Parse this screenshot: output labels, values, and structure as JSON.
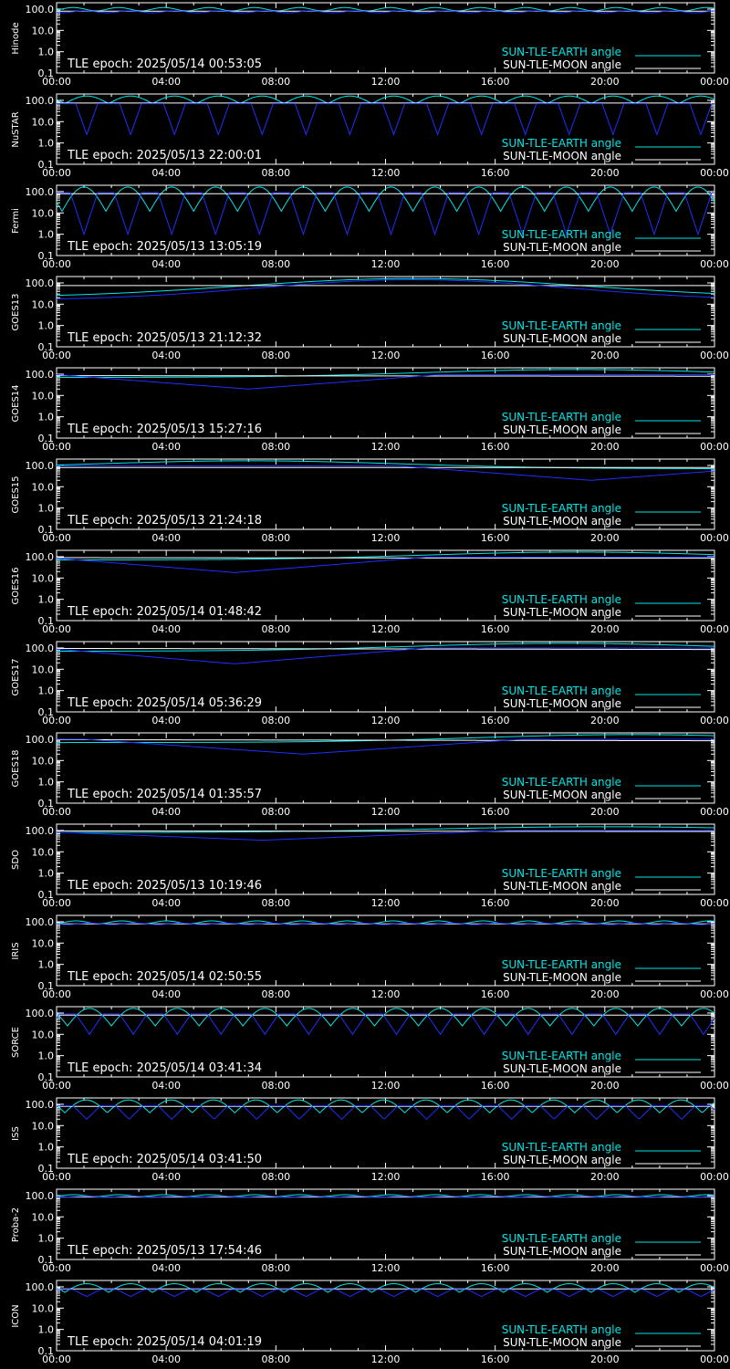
{
  "colors": {
    "background": "#000000",
    "frame": "#ffffff",
    "sun_tle_earth": "#00e5e5",
    "sun_tle_moon": "#ffffff",
    "blue_curve": "#1e2fff"
  },
  "legend": {
    "earth_label": "SUN-TLE-EARTH angle",
    "moon_label": "SUN-TLE-MOON angle"
  },
  "x_axis": {
    "ticks": [
      "00:00",
      "04:00",
      "08:00",
      "12:00",
      "16:00",
      "20:00",
      "00:00"
    ],
    "range_hours": [
      0,
      24
    ]
  },
  "y_axis": {
    "scale": "log",
    "ticks": [
      "100.0",
      "10.0",
      "1.0",
      "0.1"
    ],
    "range": [
      0.1,
      180
    ]
  },
  "chart_data": [
    {
      "type": "line",
      "satellite": "Hinode",
      "tle_epoch": "TLE epoch: 2025/05/14 00:53:05",
      "series": [
        {
          "name": "SUN-TLE-EARTH angle",
          "pattern": "periodic",
          "mean": 100,
          "amp": 18,
          "period_h": 1.65,
          "phase_h": 0.2
        },
        {
          "name": "SUN-TLE-MOON angle",
          "pattern": "linear",
          "start": 80,
          "end": 80
        },
        {
          "pattern": "periodic",
          "mean": 75,
          "amp": 8,
          "period_h": 1.65,
          "phase_h": 0.6
        }
      ]
    },
    {
      "type": "line",
      "satellite": "NuSTAR",
      "tle_epoch": "TLE epoch: 2025/05/13 22:00:01",
      "series": [
        {
          "name": "SUN-TLE-EARTH angle",
          "pattern": "arch",
          "peak": 160,
          "trough": 70,
          "period_h": 1.6,
          "phase_h": 0.3
        },
        {
          "name": "SUN-TLE-MOON angle",
          "pattern": "linear",
          "start": 75,
          "end": 75
        },
        {
          "pattern": "vdip",
          "base": 70,
          "min": 2.5,
          "period_h": 1.6,
          "phase_h": 1.1,
          "width_h": 0.4
        }
      ]
    },
    {
      "type": "line",
      "satellite": "Fermi",
      "tle_epoch": "TLE epoch: 2025/05/13 13:05:19",
      "series": [
        {
          "name": "SUN-TLE-EARTH angle",
          "pattern": "arch",
          "peak": 165,
          "trough": 12,
          "period_h": 1.6,
          "phase_h": 0.2
        },
        {
          "name": "SUN-TLE-MOON angle",
          "pattern": "linear",
          "start": 80,
          "end": 80
        },
        {
          "pattern": "vdip",
          "base": 90,
          "min": 1.0,
          "period_h": 1.6,
          "phase_h": 1.0,
          "width_h": 0.5
        }
      ]
    },
    {
      "type": "line",
      "satellite": "GOES13",
      "tle_epoch": "TLE epoch: 2025/05/13 21:12:32",
      "series": [
        {
          "name": "SUN-TLE-EARTH angle",
          "pattern": "bell",
          "center_h": 13,
          "peak": 160,
          "base": 20,
          "width_h": 9
        },
        {
          "name": "SUN-TLE-MOON angle",
          "pattern": "linear",
          "start": 75,
          "end": 75
        },
        {
          "pattern": "bell",
          "center_h": 13,
          "peak": 140,
          "base": 15,
          "width_h": 8
        }
      ]
    },
    {
      "type": "line",
      "satellite": "GOES14",
      "tle_epoch": "TLE epoch: 2025/05/13 15:27:16",
      "series": [
        {
          "name": "SUN-TLE-EARTH angle",
          "pattern": "bell",
          "center_h": 19,
          "peak": 165,
          "base": 70,
          "width_h": 8
        },
        {
          "name": "SUN-TLE-MOON angle",
          "pattern": "linear",
          "start": 85,
          "end": 80
        },
        {
          "pattern": "vee",
          "center_h": 7,
          "min": 20,
          "base": 95,
          "width_h": 7
        }
      ]
    },
    {
      "type": "line",
      "satellite": "GOES15",
      "tle_epoch": "TLE epoch: 2025/05/13 21:24:18",
      "series": [
        {
          "name": "SUN-TLE-EARTH angle",
          "pattern": "bell",
          "center_h": 7,
          "peak": 165,
          "base": 70,
          "width_h": 8
        },
        {
          "name": "SUN-TLE-MOON angle",
          "pattern": "linear",
          "start": 80,
          "end": 80
        },
        {
          "pattern": "vee",
          "center_h": 19.5,
          "min": 20,
          "base": 95,
          "width_h": 7
        }
      ]
    },
    {
      "type": "line",
      "satellite": "GOES16",
      "tle_epoch": "TLE epoch: 2025/05/14 01:48:42",
      "series": [
        {
          "name": "SUN-TLE-EARTH angle",
          "pattern": "bell",
          "center_h": 19,
          "peak": 165,
          "base": 70,
          "width_h": 8
        },
        {
          "name": "SUN-TLE-MOON angle",
          "pattern": "linear",
          "start": 90,
          "end": 85
        },
        {
          "pattern": "vee",
          "center_h": 6.5,
          "min": 18,
          "base": 95,
          "width_h": 7
        }
      ]
    },
    {
      "type": "line",
      "satellite": "GOES17",
      "tle_epoch": "TLE epoch: 2025/05/14 05:36:29",
      "series": [
        {
          "name": "SUN-TLE-EARTH angle",
          "pattern": "bell",
          "center_h": 18.5,
          "peak": 165,
          "base": 70,
          "width_h": 8
        },
        {
          "name": "SUN-TLE-MOON angle",
          "pattern": "linear",
          "start": 95,
          "end": 85
        },
        {
          "pattern": "vee",
          "center_h": 6.5,
          "min": 18,
          "base": 100,
          "width_h": 7
        }
      ]
    },
    {
      "type": "line",
      "satellite": "GOES18",
      "tle_epoch": "TLE epoch: 2025/05/14 01:35:57",
      "series": [
        {
          "name": "SUN-TLE-EARTH angle",
          "pattern": "bell",
          "center_h": 21,
          "peak": 165,
          "base": 70,
          "width_h": 8
        },
        {
          "name": "SUN-TLE-MOON angle",
          "pattern": "linear",
          "start": 95,
          "end": 85
        },
        {
          "pattern": "vee",
          "center_h": 9,
          "min": 20,
          "base": 100,
          "width_h": 8
        }
      ]
    },
    {
      "type": "line",
      "satellite": "SDO",
      "tle_epoch": "TLE epoch: 2025/05/13 10:19:46",
      "series": [
        {
          "name": "SUN-TLE-EARTH angle",
          "pattern": "bell",
          "center_h": 20,
          "peak": 150,
          "base": 80,
          "width_h": 9
        },
        {
          "name": "SUN-TLE-MOON angle",
          "pattern": "linear",
          "start": 95,
          "end": 90
        },
        {
          "pattern": "vee",
          "center_h": 7.5,
          "min": 35,
          "base": 100,
          "width_h": 9
        }
      ]
    },
    {
      "type": "line",
      "satellite": "IRIS",
      "tle_epoch": "TLE epoch: 2025/05/14 02:50:55",
      "series": [
        {
          "name": "SUN-TLE-EARTH angle",
          "pattern": "periodic",
          "mean": 95,
          "amp": 15,
          "period_h": 1.65,
          "phase_h": 0.3
        },
        {
          "name": "SUN-TLE-MOON angle",
          "pattern": "linear",
          "start": 80,
          "end": 80
        },
        {
          "pattern": "periodic",
          "mean": 80,
          "amp": 6,
          "period_h": 1.65,
          "phase_h": 0.8
        }
      ]
    },
    {
      "type": "line",
      "satellite": "SORCE",
      "tle_epoch": "TLE epoch: 2025/05/14 03:41:34",
      "series": [
        {
          "name": "SUN-TLE-EARTH angle",
          "pattern": "arch",
          "peak": 165,
          "trough": 25,
          "period_h": 1.6,
          "phase_h": 0.4
        },
        {
          "name": "SUN-TLE-MOON angle",
          "pattern": "linear",
          "start": 80,
          "end": 80
        },
        {
          "pattern": "vdip",
          "base": 90,
          "min": 10,
          "period_h": 1.6,
          "phase_h": 1.2,
          "width_h": 0.5
        }
      ]
    },
    {
      "type": "line",
      "satellite": "ISS",
      "tle_epoch": "TLE epoch: 2025/05/14 03:41:50",
      "series": [
        {
          "name": "SUN-TLE-EARTH angle",
          "pattern": "arch",
          "peak": 160,
          "trough": 40,
          "period_h": 1.55,
          "phase_h": 0.3
        },
        {
          "name": "SUN-TLE-MOON angle",
          "pattern": "linear",
          "start": 80,
          "end": 80
        },
        {
          "pattern": "vdip",
          "base": 85,
          "min": 20,
          "period_h": 1.55,
          "phase_h": 1.1,
          "width_h": 0.5
        }
      ]
    },
    {
      "type": "line",
      "satellite": "Proba-2",
      "tle_epoch": "TLE epoch: 2025/05/13 17:54:46",
      "series": [
        {
          "name": "SUN-TLE-EARTH angle",
          "pattern": "periodic",
          "mean": 100,
          "amp": 10,
          "period_h": 1.65,
          "phase_h": 0.2
        },
        {
          "name": "SUN-TLE-MOON angle",
          "pattern": "linear",
          "start": 85,
          "end": 85
        },
        {
          "pattern": "periodic",
          "mean": 88,
          "amp": 4,
          "period_h": 1.65,
          "phase_h": 0.6
        }
      ]
    },
    {
      "type": "line",
      "satellite": "ICON",
      "tle_epoch": "TLE epoch: 2025/05/14 04:01:19",
      "series": [
        {
          "name": "SUN-TLE-EARTH angle",
          "pattern": "arch",
          "peak": 140,
          "trough": 55,
          "period_h": 1.6,
          "phase_h": 0.3
        },
        {
          "name": "SUN-TLE-MOON angle",
          "pattern": "linear",
          "start": 80,
          "end": 80
        },
        {
          "pattern": "vdip",
          "base": 75,
          "min": 35,
          "period_h": 1.6,
          "phase_h": 1.1,
          "width_h": 0.5
        }
      ]
    }
  ]
}
